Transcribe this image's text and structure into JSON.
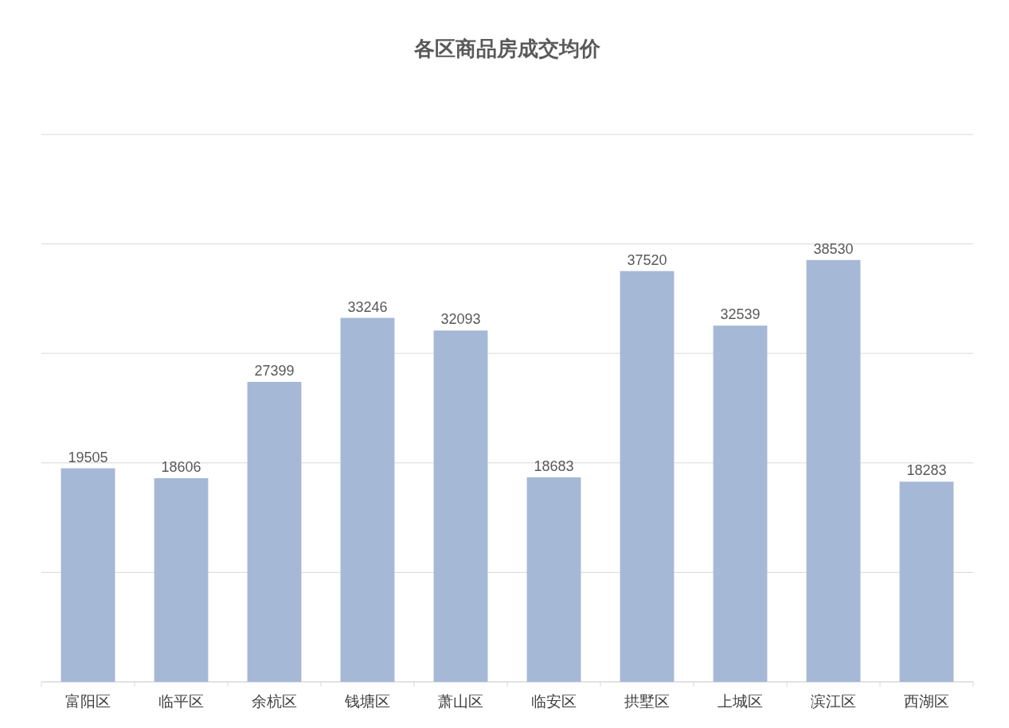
{
  "chart_data": {
    "type": "bar",
    "title": "各区商品房成交均价",
    "categories": [
      "富阳区",
      "临平区",
      "余杭区",
      "钱塘区",
      "萧山区",
      "临安区",
      "拱墅区",
      "上城区",
      "滨江区",
      "西湖区"
    ],
    "values": [
      19505,
      18606,
      27399,
      33246,
      32093,
      18683,
      37520,
      32539,
      38530,
      18283
    ],
    "color": "#a5b8d6",
    "ylim": [
      0,
      50000
    ],
    "yticks": [
      {
        "value": 0,
        "label": null
      },
      {
        "value": 10000,
        "label": null
      },
      {
        "value": 20000,
        "label": null
      },
      {
        "value": 30000,
        "label": null
      },
      {
        "value": 40000,
        "label": null
      },
      {
        "value": 50000,
        "label": null
      }
    ],
    "grid": "y",
    "data_labels": true
  }
}
